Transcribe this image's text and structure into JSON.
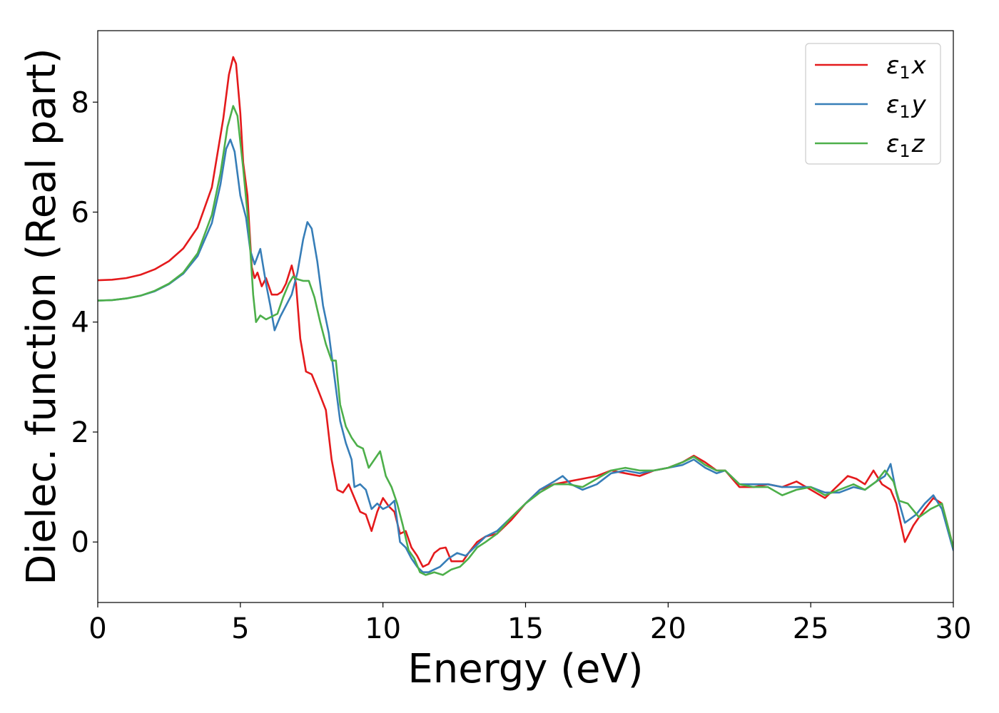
{
  "chart_data": {
    "type": "line",
    "xlabel": "Energy (eV)",
    "ylabel": "Dielec. function (Real part)",
    "xlim": [
      0,
      30
    ],
    "ylim": [
      -1.1,
      9.3
    ],
    "xticks": [
      0,
      5,
      10,
      15,
      20,
      25,
      30
    ],
    "yticks": [
      0,
      2,
      4,
      6,
      8
    ],
    "grid": false,
    "legend_position": "top-right",
    "series": [
      {
        "name": "ε1x",
        "legend": {
          "base": "ε",
          "sub": "1",
          "var": "x"
        },
        "color": "#e41a1c",
        "points": [
          [
            0,
            4.76
          ],
          [
            0.5,
            4.77
          ],
          [
            1,
            4.8
          ],
          [
            1.5,
            4.86
          ],
          [
            2,
            4.96
          ],
          [
            2.5,
            5.11
          ],
          [
            3,
            5.34
          ],
          [
            3.5,
            5.72
          ],
          [
            4,
            6.45
          ],
          [
            4.4,
            7.7
          ],
          [
            4.6,
            8.5
          ],
          [
            4.75,
            8.82
          ],
          [
            4.85,
            8.7
          ],
          [
            5.0,
            7.8
          ],
          [
            5.1,
            6.9
          ],
          [
            5.25,
            6.3
          ],
          [
            5.4,
            5.0
          ],
          [
            5.5,
            4.8
          ],
          [
            5.6,
            4.9
          ],
          [
            5.75,
            4.65
          ],
          [
            5.9,
            4.8
          ],
          [
            6.1,
            4.5
          ],
          [
            6.3,
            4.5
          ],
          [
            6.45,
            4.55
          ],
          [
            6.6,
            4.7
          ],
          [
            6.8,
            5.03
          ],
          [
            6.95,
            4.7
          ],
          [
            7.1,
            3.7
          ],
          [
            7.3,
            3.1
          ],
          [
            7.5,
            3.05
          ],
          [
            7.7,
            2.8
          ],
          [
            7.85,
            2.6
          ],
          [
            8.0,
            2.4
          ],
          [
            8.2,
            1.5
          ],
          [
            8.4,
            0.95
          ],
          [
            8.6,
            0.9
          ],
          [
            8.8,
            1.05
          ],
          [
            9.0,
            0.8
          ],
          [
            9.2,
            0.55
          ],
          [
            9.4,
            0.5
          ],
          [
            9.6,
            0.2
          ],
          [
            9.8,
            0.55
          ],
          [
            10.0,
            0.8
          ],
          [
            10.2,
            0.65
          ],
          [
            10.4,
            0.55
          ],
          [
            10.6,
            0.15
          ],
          [
            10.8,
            0.2
          ],
          [
            11.0,
            -0.1
          ],
          [
            11.2,
            -0.25
          ],
          [
            11.4,
            -0.45
          ],
          [
            11.6,
            -0.4
          ],
          [
            11.8,
            -0.2
          ],
          [
            12.0,
            -0.12
          ],
          [
            12.2,
            -0.1
          ],
          [
            12.4,
            -0.35
          ],
          [
            12.6,
            -0.35
          ],
          [
            12.8,
            -0.35
          ],
          [
            13.0,
            -0.2
          ],
          [
            13.3,
            0.0
          ],
          [
            13.6,
            0.1
          ],
          [
            14.0,
            0.15
          ],
          [
            14.5,
            0.4
          ],
          [
            15.0,
            0.7
          ],
          [
            15.5,
            0.95
          ],
          [
            16.0,
            1.05
          ],
          [
            16.5,
            1.1
          ],
          [
            17.0,
            1.15
          ],
          [
            17.5,
            1.2
          ],
          [
            18.0,
            1.3
          ],
          [
            18.5,
            1.25
          ],
          [
            19.0,
            1.2
          ],
          [
            19.5,
            1.3
          ],
          [
            20.0,
            1.35
          ],
          [
            20.5,
            1.45
          ],
          [
            20.9,
            1.57
          ],
          [
            21.3,
            1.45
          ],
          [
            21.7,
            1.3
          ],
          [
            22.0,
            1.3
          ],
          [
            22.5,
            1.0
          ],
          [
            23.0,
            1.0
          ],
          [
            23.5,
            1.05
          ],
          [
            24.0,
            1.0
          ],
          [
            24.5,
            1.1
          ],
          [
            25.0,
            0.95
          ],
          [
            25.5,
            0.8
          ],
          [
            26.0,
            1.05
          ],
          [
            26.3,
            1.2
          ],
          [
            26.6,
            1.15
          ],
          [
            26.9,
            1.05
          ],
          [
            27.2,
            1.3
          ],
          [
            27.5,
            1.05
          ],
          [
            27.8,
            0.95
          ],
          [
            28.0,
            0.7
          ],
          [
            28.3,
            0.0
          ],
          [
            28.6,
            0.3
          ],
          [
            29.0,
            0.6
          ],
          [
            29.3,
            0.8
          ],
          [
            29.6,
            0.7
          ],
          [
            30.0,
            -0.1
          ]
        ]
      },
      {
        "name": "ε1y",
        "legend": {
          "base": "ε",
          "sub": "1",
          "var": "y"
        },
        "color": "#377eb8",
        "points": [
          [
            0,
            4.39
          ],
          [
            0.5,
            4.4
          ],
          [
            1,
            4.43
          ],
          [
            1.5,
            4.48
          ],
          [
            2,
            4.56
          ],
          [
            2.5,
            4.69
          ],
          [
            3,
            4.88
          ],
          [
            3.5,
            5.2
          ],
          [
            4,
            5.8
          ],
          [
            4.3,
            6.5
          ],
          [
            4.5,
            7.15
          ],
          [
            4.65,
            7.32
          ],
          [
            4.8,
            7.1
          ],
          [
            5.0,
            6.3
          ],
          [
            5.2,
            5.9
          ],
          [
            5.35,
            5.3
          ],
          [
            5.5,
            5.05
          ],
          [
            5.7,
            5.33
          ],
          [
            5.9,
            4.7
          ],
          [
            6.05,
            4.3
          ],
          [
            6.2,
            3.85
          ],
          [
            6.4,
            4.1
          ],
          [
            6.6,
            4.3
          ],
          [
            6.8,
            4.5
          ],
          [
            7.0,
            4.9
          ],
          [
            7.2,
            5.5
          ],
          [
            7.35,
            5.82
          ],
          [
            7.5,
            5.7
          ],
          [
            7.7,
            5.1
          ],
          [
            7.9,
            4.3
          ],
          [
            8.1,
            3.8
          ],
          [
            8.3,
            3.0
          ],
          [
            8.5,
            2.2
          ],
          [
            8.7,
            1.8
          ],
          [
            8.9,
            1.5
          ],
          [
            9.0,
            1.0
          ],
          [
            9.2,
            1.05
          ],
          [
            9.4,
            0.95
          ],
          [
            9.6,
            0.6
          ],
          [
            9.8,
            0.7
          ],
          [
            10.0,
            0.6
          ],
          [
            10.2,
            0.65
          ],
          [
            10.4,
            0.75
          ],
          [
            10.6,
            0.0
          ],
          [
            10.8,
            -0.1
          ],
          [
            11.0,
            -0.3
          ],
          [
            11.2,
            -0.45
          ],
          [
            11.4,
            -0.55
          ],
          [
            11.6,
            -0.55
          ],
          [
            11.8,
            -0.5
          ],
          [
            12.0,
            -0.45
          ],
          [
            12.3,
            -0.3
          ],
          [
            12.6,
            -0.2
          ],
          [
            12.9,
            -0.25
          ],
          [
            13.2,
            -0.1
          ],
          [
            13.6,
            0.1
          ],
          [
            14.0,
            0.2
          ],
          [
            14.5,
            0.45
          ],
          [
            15.0,
            0.7
          ],
          [
            15.5,
            0.95
          ],
          [
            16.0,
            1.1
          ],
          [
            16.3,
            1.2
          ],
          [
            16.6,
            1.05
          ],
          [
            17.0,
            0.95
          ],
          [
            17.5,
            1.05
          ],
          [
            18.0,
            1.25
          ],
          [
            18.5,
            1.3
          ],
          [
            19.0,
            1.25
          ],
          [
            19.5,
            1.3
          ],
          [
            20.0,
            1.35
          ],
          [
            20.5,
            1.4
          ],
          [
            20.9,
            1.5
          ],
          [
            21.3,
            1.35
          ],
          [
            21.7,
            1.25
          ],
          [
            22.0,
            1.3
          ],
          [
            22.5,
            1.05
          ],
          [
            23.0,
            1.05
          ],
          [
            23.5,
            1.05
          ],
          [
            24.0,
            1.0
          ],
          [
            24.5,
            1.0
          ],
          [
            25.0,
            1.0
          ],
          [
            25.5,
            0.9
          ],
          [
            26.0,
            0.9
          ],
          [
            26.5,
            1.0
          ],
          [
            26.9,
            0.95
          ],
          [
            27.3,
            1.1
          ],
          [
            27.6,
            1.2
          ],
          [
            27.8,
            1.42
          ],
          [
            28.0,
            0.9
          ],
          [
            28.3,
            0.35
          ],
          [
            28.7,
            0.5
          ],
          [
            29.0,
            0.7
          ],
          [
            29.3,
            0.85
          ],
          [
            29.6,
            0.6
          ],
          [
            30.0,
            -0.15
          ]
        ]
      },
      {
        "name": "ε1z",
        "legend": {
          "base": "ε",
          "sub": "1",
          "var": "z"
        },
        "color": "#4daf4a",
        "points": [
          [
            0,
            4.39
          ],
          [
            0.5,
            4.4
          ],
          [
            1,
            4.43
          ],
          [
            1.5,
            4.48
          ],
          [
            2,
            4.57
          ],
          [
            2.5,
            4.7
          ],
          [
            3,
            4.9
          ],
          [
            3.5,
            5.25
          ],
          [
            4,
            5.95
          ],
          [
            4.3,
            6.7
          ],
          [
            4.55,
            7.55
          ],
          [
            4.75,
            7.93
          ],
          [
            4.9,
            7.75
          ],
          [
            5.1,
            6.8
          ],
          [
            5.3,
            5.7
          ],
          [
            5.45,
            4.5
          ],
          [
            5.55,
            4.0
          ],
          [
            5.7,
            4.12
          ],
          [
            5.9,
            4.05
          ],
          [
            6.1,
            4.1
          ],
          [
            6.3,
            4.15
          ],
          [
            6.5,
            4.45
          ],
          [
            6.7,
            4.7
          ],
          [
            6.85,
            4.83
          ],
          [
            7.0,
            4.78
          ],
          [
            7.2,
            4.75
          ],
          [
            7.4,
            4.75
          ],
          [
            7.6,
            4.45
          ],
          [
            7.8,
            4.0
          ],
          [
            8.0,
            3.6
          ],
          [
            8.2,
            3.3
          ],
          [
            8.35,
            3.3
          ],
          [
            8.5,
            2.5
          ],
          [
            8.7,
            2.1
          ],
          [
            8.9,
            1.9
          ],
          [
            9.1,
            1.75
          ],
          [
            9.3,
            1.7
          ],
          [
            9.5,
            1.35
          ],
          [
            9.7,
            1.5
          ],
          [
            9.9,
            1.65
          ],
          [
            10.1,
            1.2
          ],
          [
            10.3,
            1.0
          ],
          [
            10.5,
            0.7
          ],
          [
            10.7,
            0.3
          ],
          [
            10.9,
            -0.15
          ],
          [
            11.1,
            -0.3
          ],
          [
            11.3,
            -0.55
          ],
          [
            11.5,
            -0.6
          ],
          [
            11.8,
            -0.55
          ],
          [
            12.1,
            -0.6
          ],
          [
            12.4,
            -0.5
          ],
          [
            12.7,
            -0.45
          ],
          [
            13.0,
            -0.3
          ],
          [
            13.3,
            -0.1
          ],
          [
            13.6,
            0.0
          ],
          [
            14.0,
            0.15
          ],
          [
            14.5,
            0.45
          ],
          [
            15.0,
            0.7
          ],
          [
            15.5,
            0.9
          ],
          [
            16.0,
            1.05
          ],
          [
            16.5,
            1.05
          ],
          [
            17.0,
            1.0
          ],
          [
            17.5,
            1.15
          ],
          [
            18.0,
            1.3
          ],
          [
            18.5,
            1.35
          ],
          [
            19.0,
            1.3
          ],
          [
            19.5,
            1.3
          ],
          [
            20.0,
            1.35
          ],
          [
            20.5,
            1.45
          ],
          [
            20.9,
            1.55
          ],
          [
            21.3,
            1.4
          ],
          [
            21.7,
            1.3
          ],
          [
            22.0,
            1.3
          ],
          [
            22.5,
            1.05
          ],
          [
            23.0,
            1.0
          ],
          [
            23.5,
            1.0
          ],
          [
            24.0,
            0.85
          ],
          [
            24.5,
            0.95
          ],
          [
            25.0,
            1.0
          ],
          [
            25.5,
            0.85
          ],
          [
            26.0,
            0.95
          ],
          [
            26.5,
            1.05
          ],
          [
            26.9,
            0.95
          ],
          [
            27.3,
            1.1
          ],
          [
            27.6,
            1.3
          ],
          [
            27.9,
            1.1
          ],
          [
            28.1,
            0.75
          ],
          [
            28.4,
            0.7
          ],
          [
            28.8,
            0.45
          ],
          [
            29.2,
            0.6
          ],
          [
            29.6,
            0.7
          ],
          [
            30.0,
            -0.1
          ]
        ]
      }
    ]
  }
}
